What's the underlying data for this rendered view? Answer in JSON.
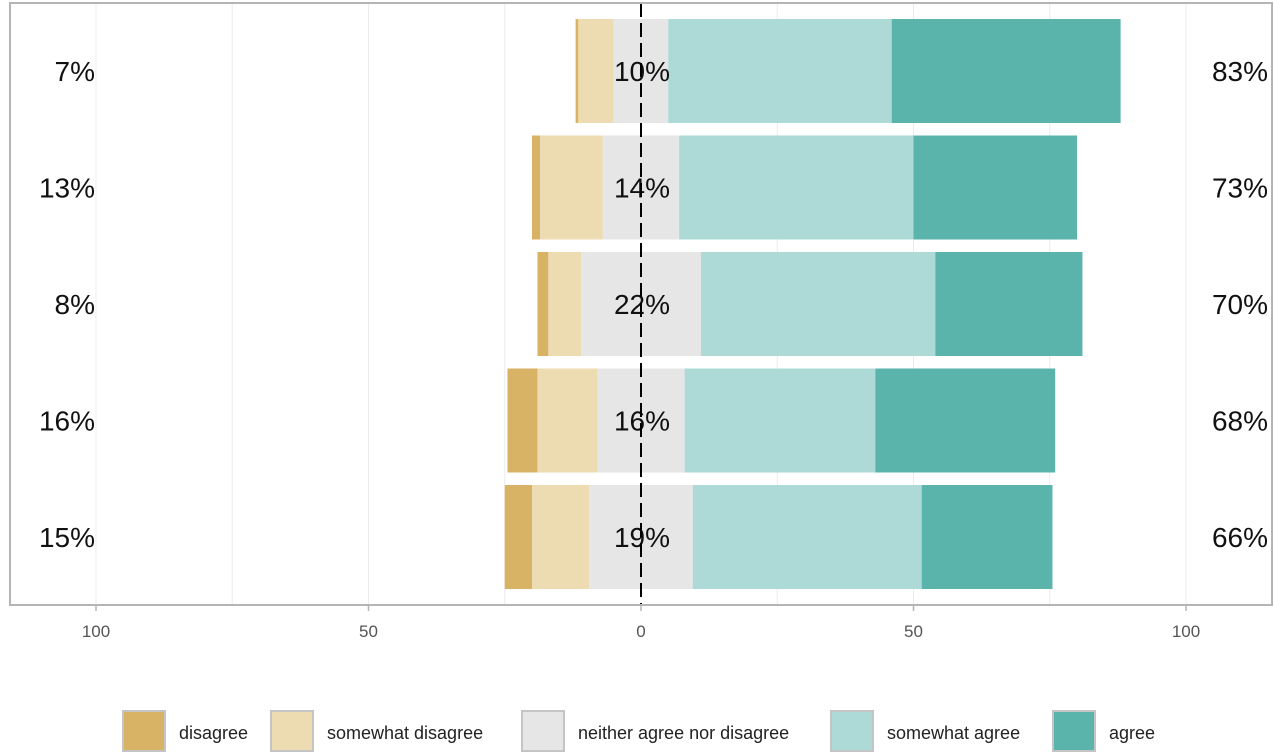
{
  "chart_data": {
    "type": "bar",
    "orientation": "horizontal-diverging",
    "title": "",
    "xlabel": "",
    "ylabel": "",
    "xlim": [
      -100,
      100
    ],
    "x_ticks": [
      {
        "value": -100,
        "label": "100"
      },
      {
        "value": -50,
        "label": "50"
      },
      {
        "value": 0,
        "label": "0"
      },
      {
        "value": 50,
        "label": "50"
      },
      {
        "value": 100,
        "label": "100"
      }
    ],
    "grid": true,
    "legend_position": "bottom",
    "colors": {
      "disagree": "#D9B365",
      "somewhat_disagree": "#EDDBB2",
      "neither": "#E6E6E6",
      "somewhat_agree": "#ADD9D6",
      "agree": "#5AB4AC"
    },
    "series": [
      {
        "key": "disagree",
        "name": "disagree"
      },
      {
        "key": "somewhat_disagree",
        "name": "somewhat disagree"
      },
      {
        "key": "neither",
        "name": "neither agree nor disagree"
      },
      {
        "key": "somewhat_agree",
        "name": "somewhat agree"
      },
      {
        "key": "agree",
        "name": "agree"
      }
    ],
    "rows": [
      {
        "disagree": 0.5,
        "somewhat_disagree": 6.5,
        "neither": 10,
        "somewhat_agree": 41,
        "agree": 42,
        "left_label": "7%",
        "center_label": "10%",
        "right_label": "83%"
      },
      {
        "disagree": 1.5,
        "somewhat_disagree": 11.5,
        "neither": 14,
        "somewhat_agree": 43,
        "agree": 30,
        "left_label": "13%",
        "center_label": "14%",
        "right_label": "73%"
      },
      {
        "disagree": 2,
        "somewhat_disagree": 6,
        "neither": 22,
        "somewhat_agree": 43,
        "agree": 27,
        "left_label": "8%",
        "center_label": "22%",
        "right_label": "70%"
      },
      {
        "disagree": 5.5,
        "somewhat_disagree": 11,
        "neither": 16,
        "somewhat_agree": 35,
        "agree": 33,
        "left_label": "16%",
        "center_label": "16%",
        "right_label": "68%"
      },
      {
        "disagree": 5,
        "somewhat_disagree": 10.5,
        "neither": 19,
        "somewhat_agree": 42,
        "agree": 24,
        "left_label": "15%",
        "center_label": "19%",
        "right_label": "66%"
      }
    ]
  }
}
